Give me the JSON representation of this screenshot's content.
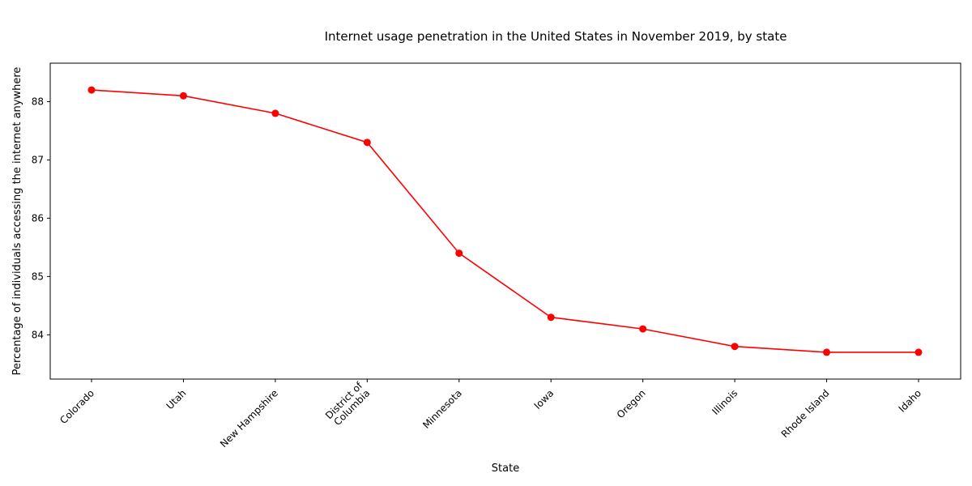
{
  "chart_data": {
    "type": "line",
    "title": "Internet usage penetration in the United States in November 2019, by state",
    "xlabel": "State",
    "ylabel": "Percentage of individuals accessing the internet anywhere",
    "categories": [
      "Colorado",
      "Utah",
      "New Hampshire",
      "District of\nColumbia",
      "Minnesota",
      "Iowa",
      "Oregon",
      "Illinois",
      "Rhode Island",
      "Idaho"
    ],
    "series": [
      {
        "values": [
          88.2,
          88.1,
          87.8,
          87.3,
          85.4,
          84.3,
          84.1,
          83.8,
          83.7,
          83.7
        ],
        "color": "#ff0000",
        "marker": "circle"
      }
    ],
    "ylim": [
      83.24,
      88.66
    ],
    "yticks": [
      84,
      85,
      86,
      87,
      88
    ],
    "grid": false,
    "legend": "none"
  }
}
